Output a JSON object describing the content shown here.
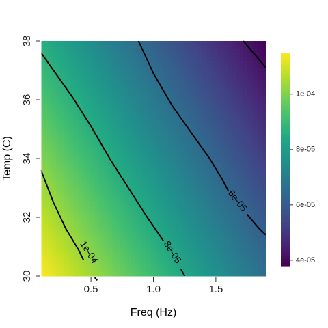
{
  "chart_data": {
    "type": "heatmap",
    "title": "",
    "xlabel": "Freq (Hz)",
    "ylabel": "Temp (C)",
    "xlim": [
      0.1,
      1.9
    ],
    "ylim": [
      30,
      38
    ],
    "x_ticks": [
      {
        "value": 0.5,
        "label": "0.5"
      },
      {
        "value": 1.0,
        "label": "1.0"
      },
      {
        "value": 1.5,
        "label": "1.5"
      }
    ],
    "y_ticks": [
      {
        "value": 30,
        "label": "30"
      },
      {
        "value": 32,
        "label": "32"
      },
      {
        "value": 34,
        "label": "34"
      },
      {
        "value": 36,
        "label": "36"
      },
      {
        "value": 38,
        "label": "38"
      }
    ],
    "colormap": "viridis",
    "colorbar": {
      "range": [
        3.8e-05,
        0.000115
      ],
      "ticks": [
        {
          "value": 4e-05,
          "label": "4e-05"
        },
        {
          "value": 6e-05,
          "label": "6e-05"
        },
        {
          "value": 8e-05,
          "label": "8e-05"
        },
        {
          "value": 0.0001,
          "label": "1e-04"
        }
      ]
    },
    "surface_corners": {
      "x0_y30": 0.000115,
      "x1_y30": 6.6e-05,
      "x0_y38": 8.6e-05,
      "x1_y38": 3.8e-05
    },
    "contours": [
      {
        "level": 0.0001,
        "label": "1e-04",
        "points": [
          [
            0.1,
            33.6
          ],
          [
            0.2,
            32.5
          ],
          [
            0.3,
            31.6
          ],
          [
            0.4,
            30.9
          ],
          [
            0.44,
            30.55
          ]
        ],
        "points_after_label": [
          [
            0.53,
            29.95
          ],
          [
            0.55,
            29.85
          ]
        ]
      },
      {
        "level": 8e-05,
        "label": "8e-05",
        "points": [
          [
            0.1,
            37.6
          ],
          [
            0.2,
            37.0
          ],
          [
            0.35,
            36.1
          ],
          [
            0.5,
            35.1
          ],
          [
            0.65,
            34.0
          ],
          [
            0.8,
            33.0
          ],
          [
            0.95,
            32.0
          ],
          [
            1.08,
            31.2
          ]
        ],
        "points_after_label": [
          [
            1.22,
            30.25
          ],
          [
            1.25,
            30.0
          ]
        ]
      },
      {
        "level": 6e-05,
        "label": "6e-05",
        "points": [
          [
            0.88,
            38.0
          ],
          [
            1.0,
            36.9
          ],
          [
            1.15,
            35.8
          ],
          [
            1.3,
            34.9
          ],
          [
            1.45,
            34.0
          ],
          [
            1.55,
            33.3
          ],
          [
            1.6,
            32.9
          ]
        ],
        "points_after_label": [
          [
            1.75,
            32.1
          ],
          [
            1.85,
            31.6
          ],
          [
            1.9,
            31.4
          ]
        ]
      },
      {
        "level": 4e-05,
        "label": "",
        "points": [
          [
            1.72,
            38.0
          ],
          [
            1.8,
            37.6
          ],
          [
            1.9,
            37.1
          ]
        ],
        "points_after_label": []
      }
    ],
    "contour_label_positions": [
      {
        "label": "1e-04",
        "x": 0.48,
        "y": 30.8
      },
      {
        "label": "8e-05",
        "x": 1.15,
        "y": 30.8
      },
      {
        "label": "6e-05",
        "x": 1.67,
        "y": 32.55
      }
    ]
  }
}
